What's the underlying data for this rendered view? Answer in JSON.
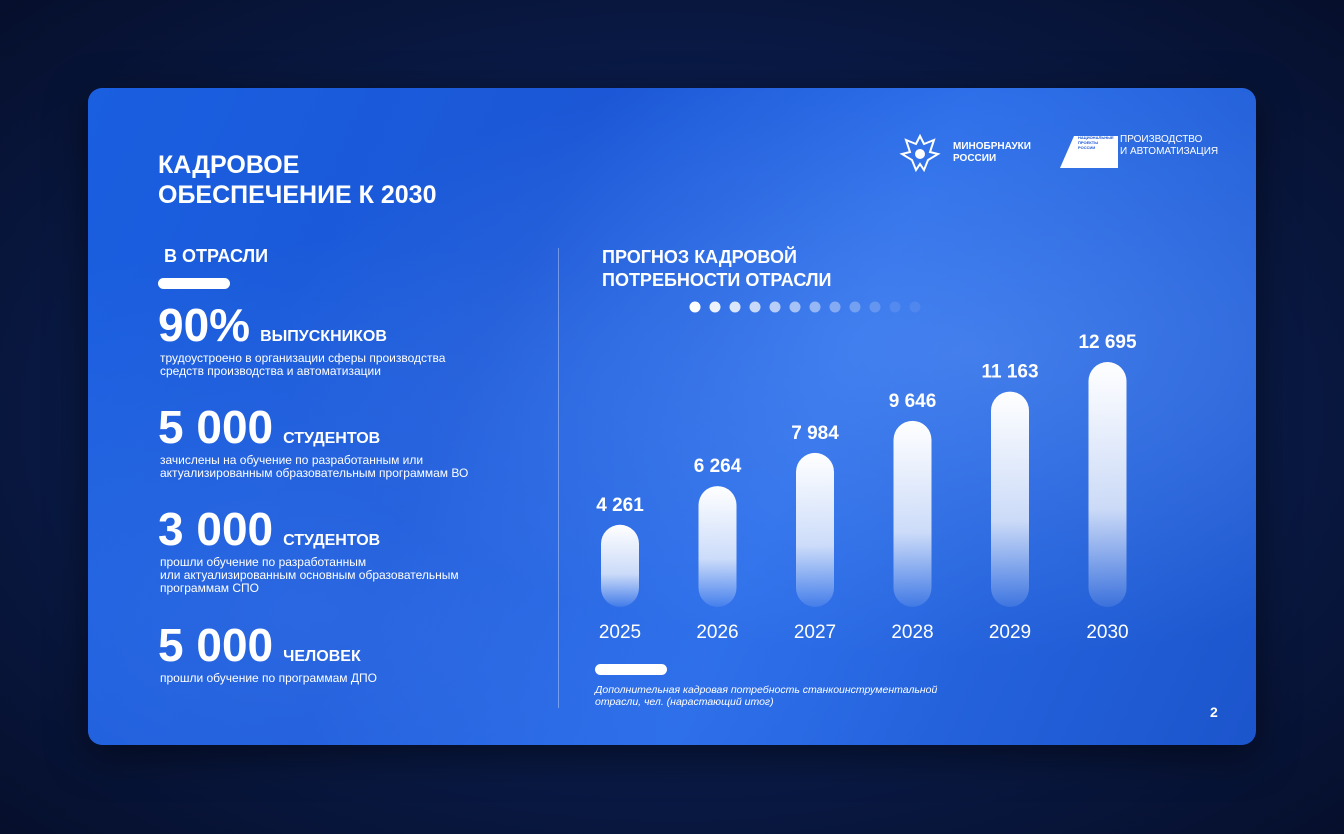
{
  "header": {
    "title": [
      "КАДРОВОЕ",
      "ОБЕСПЕЧЕНИЕ К 2030"
    ],
    "logo_ministry": [
      "МИНОБРНАУКИ",
      "РОССИИ"
    ],
    "logo_project_small": [
      "НАЦИОНАЛЬНЫЕ",
      "ПРОЕКТЫ",
      "РОССИИ"
    ],
    "logo_project": [
      "ПРОИЗВОДСТВО",
      "И АВТОМАТИЗАЦИЯ"
    ]
  },
  "section": "В ОТРАСЛИ",
  "stats": [
    {
      "number": "90%",
      "unit": "ВЫПУСКНИКОВ",
      "description": [
        "трудоустроено в организации сферы производства",
        "средств производства и автоматизации"
      ]
    },
    {
      "number": "5 000",
      "unit": "СТУДЕНТОВ",
      "description": [
        "зачислены на обучение по разработанным или",
        "актуализированным образовательным программам ВО"
      ]
    },
    {
      "number": "3 000",
      "unit": "СТУДЕНТОВ",
      "description": [
        "прошли обучение по разработанным",
        "или актуализированным основным образовательным",
        "программам СПО"
      ]
    },
    {
      "number": "5 000",
      "unit": "ЧЕЛОВЕК",
      "description": [
        "прошли обучение по программам ДПО"
      ]
    }
  ],
  "chart_data": {
    "type": "bar",
    "title": [
      "ПРОГНОЗ КАДРОВОЙ",
      "ПОТРЕБНОСТИ ОТРАСЛИ"
    ],
    "categories": [
      "2025",
      "2026",
      "2027",
      "2028",
      "2029",
      "2030"
    ],
    "values": [
      4261,
      6264,
      7984,
      9646,
      11163,
      12695
    ],
    "value_labels": [
      "4 261",
      "6 264",
      "7 984",
      "9 646",
      "11 163",
      "12 695"
    ],
    "color": "#ffffff",
    "caption": [
      "Дополнительная кадровая потребность станкоинструментальной",
      "отрасли, чел. (нарастающий итог)"
    ]
  },
  "page_number": "2"
}
